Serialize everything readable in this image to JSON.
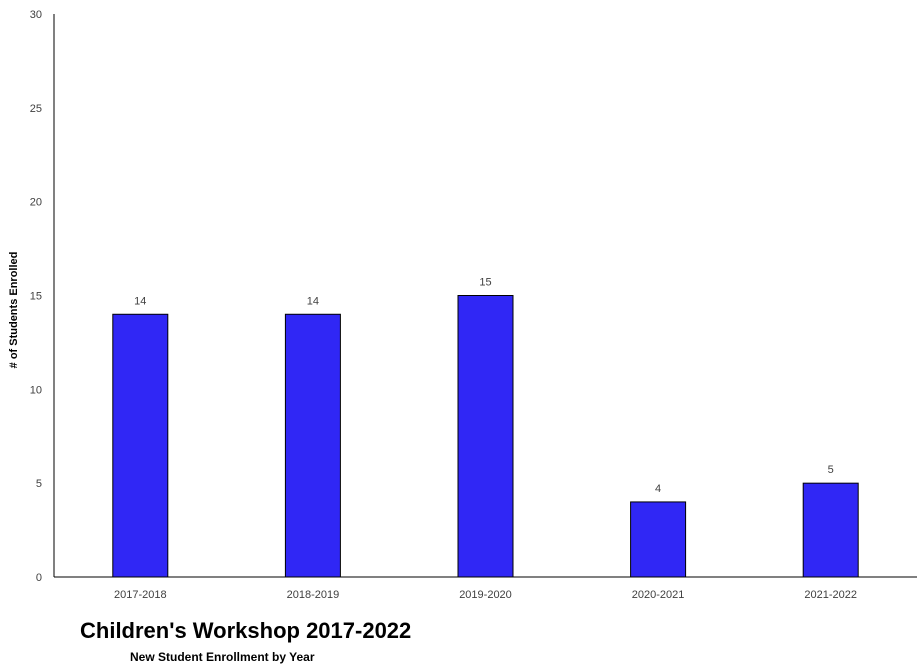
{
  "chart_data": {
    "type": "bar",
    "title": "Children's Workshop 2017-2022",
    "subtitle": "New Student Enrollment by Year",
    "xlabel": "",
    "ylabel": "# of Students Enrolled",
    "categories": [
      "2017-2018",
      "2018-2019",
      "2019-2020",
      "2020-2021",
      "2021-2022"
    ],
    "values": [
      14,
      14,
      15,
      4,
      5
    ],
    "data_labels": [
      "14",
      "14",
      "15",
      "4",
      "5"
    ],
    "ylim": [
      0,
      30
    ],
    "yticks": [
      "0",
      "5",
      "10",
      "15",
      "20",
      "25",
      "30"
    ],
    "grid": false,
    "legend": "none",
    "colors": {
      "bar_fill": "#3027f5",
      "bar_stroke": "#000000",
      "axis": "#000000"
    }
  }
}
